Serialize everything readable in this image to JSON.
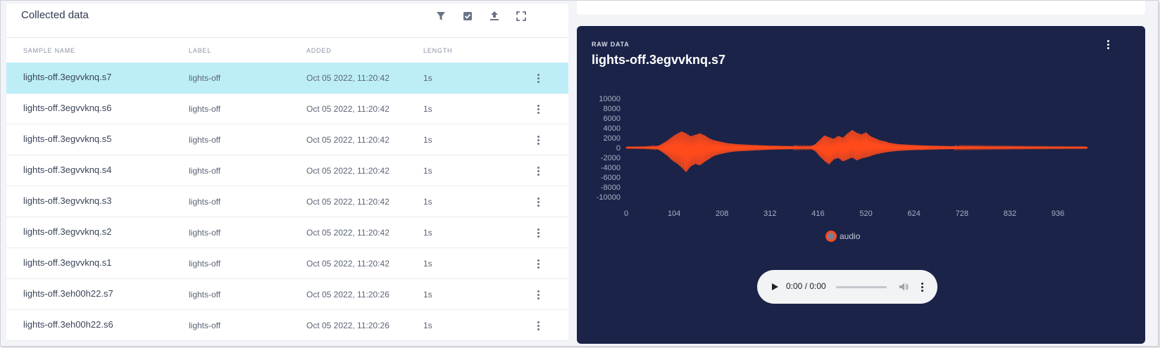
{
  "collected": {
    "title": "Collected data",
    "toolbar_icons": [
      "filter-icon",
      "checkbox-icon",
      "upload-icon",
      "fullscreen-icon"
    ],
    "columns": [
      "SAMPLE NAME",
      "LABEL",
      "ADDED",
      "LENGTH"
    ],
    "rows": [
      {
        "name": "lights-off.3egvvknq.s7",
        "label": "lights-off",
        "added": "Oct 05 2022, 11:20:42",
        "length": "1s",
        "selected": true
      },
      {
        "name": "lights-off.3egvvknq.s6",
        "label": "lights-off",
        "added": "Oct 05 2022, 11:20:42",
        "length": "1s",
        "selected": false
      },
      {
        "name": "lights-off.3egvvknq.s5",
        "label": "lights-off",
        "added": "Oct 05 2022, 11:20:42",
        "length": "1s",
        "selected": false
      },
      {
        "name": "lights-off.3egvvknq.s4",
        "label": "lights-off",
        "added": "Oct 05 2022, 11:20:42",
        "length": "1s",
        "selected": false
      },
      {
        "name": "lights-off.3egvvknq.s3",
        "label": "lights-off",
        "added": "Oct 05 2022, 11:20:42",
        "length": "1s",
        "selected": false
      },
      {
        "name": "lights-off.3egvvknq.s2",
        "label": "lights-off",
        "added": "Oct 05 2022, 11:20:42",
        "length": "1s",
        "selected": false
      },
      {
        "name": "lights-off.3egvvknq.s1",
        "label": "lights-off",
        "added": "Oct 05 2022, 11:20:42",
        "length": "1s",
        "selected": false
      },
      {
        "name": "lights-off.3eh00h22.s7",
        "label": "lights-off",
        "added": "Oct 05 2022, 11:20:26",
        "length": "1s",
        "selected": false
      },
      {
        "name": "lights-off.3eh00h22.s6",
        "label": "lights-off",
        "added": "Oct 05 2022, 11:20:26",
        "length": "1s",
        "selected": false
      }
    ]
  },
  "raw": {
    "kicker": "RAW DATA",
    "title": "lights-off.3egvvknq.s7"
  },
  "audio_player": {
    "time": "0:00 / 0:00"
  },
  "colors": {
    "selected_row": "#bdeef8",
    "raw_bg": "#1b2349",
    "series": "#ff4a1c"
  },
  "chart_data": {
    "type": "line",
    "title": "",
    "xlabel": "",
    "ylabel": "",
    "ylim": [
      -10000,
      10000
    ],
    "y_ticks": [
      10000,
      8000,
      6000,
      4000,
      2000,
      0,
      -2000,
      -4000,
      -6000,
      -8000,
      -10000
    ],
    "xlim": [
      0,
      1000
    ],
    "x_ticks": [
      0,
      104,
      208,
      312,
      416,
      520,
      624,
      728,
      832,
      936
    ],
    "legend": {
      "position": "bottom-center",
      "entries": [
        "audio"
      ]
    },
    "series": [
      {
        "name": "audio",
        "color": "#ff4a1c",
        "x": [
          0,
          40,
          60,
          70,
          80,
          90,
          100,
          110,
          120,
          130,
          140,
          150,
          160,
          170,
          180,
          190,
          200,
          210,
          220,
          230,
          240,
          250,
          260,
          270,
          280,
          290,
          300,
          310,
          320,
          340,
          360,
          380,
          400,
          410,
          420,
          430,
          440,
          450,
          460,
          470,
          480,
          490,
          500,
          510,
          520,
          530,
          540,
          550,
          560,
          570,
          580,
          590,
          600,
          620,
          640,
          660,
          680,
          700,
          730,
          760,
          800,
          850,
          900,
          950,
          1000
        ],
        "y_upper": [
          100,
          150,
          250,
          400,
          900,
          1500,
          2200,
          2800,
          3300,
          2900,
          2300,
          2600,
          2900,
          2500,
          1900,
          1500,
          1300,
          1100,
          900,
          800,
          700,
          650,
          600,
          550,
          520,
          480,
          440,
          400,
          380,
          340,
          300,
          250,
          250,
          700,
          1600,
          2500,
          2100,
          1800,
          2400,
          2000,
          2900,
          3600,
          3000,
          2700,
          3100,
          2300,
          1900,
          1500,
          1300,
          1000,
          850,
          700,
          650,
          550,
          450,
          400,
          350,
          300,
          280,
          260,
          230,
          200,
          170,
          150,
          130
        ],
        "y_lower": [
          -100,
          -150,
          -250,
          -400,
          -1000,
          -1700,
          -2600,
          -3200,
          -4000,
          -5000,
          -3800,
          -3300,
          -3600,
          -2900,
          -2300,
          -1700,
          -1400,
          -1200,
          -1000,
          -850,
          -750,
          -700,
          -650,
          -600,
          -550,
          -500,
          -460,
          -420,
          -380,
          -340,
          -300,
          -250,
          -250,
          -700,
          -1800,
          -2700,
          -3400,
          -2400,
          -2100,
          -2800,
          -2400,
          -2000,
          -2600,
          -2200,
          -2000,
          -1700,
          -1400,
          -1200,
          -1000,
          -850,
          -750,
          -650,
          -600,
          -500,
          -450,
          -400,
          -350,
          -300,
          -280,
          -260,
          -230,
          -200,
          -170,
          -150,
          -130
        ]
      }
    ]
  }
}
